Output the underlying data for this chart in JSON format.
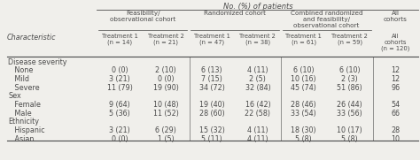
{
  "title": "No. (%) of patients",
  "col_groups": [
    {
      "label": "Feasibility/\nobservational cohort",
      "span": 2
    },
    {
      "label": "Randomized cohort",
      "span": 2
    },
    {
      "label": "Combined randomized\nand feasibility/\nobservational cohort",
      "span": 2
    },
    {
      "label": "All\ncohorts",
      "span": 1
    }
  ],
  "col_headers": [
    "Treatment 1\n(n = 14)",
    "Treatment 2\n(n = 21)",
    "Treatment 1\n(n = 47)",
    "Treatment 2\n(n = 38)",
    "Treatment 1\n(n = 61)",
    "Treatment 2\n(n = 59)",
    "All\ncohorts\n(n = 120)"
  ],
  "row_label_col": "Characteristic",
  "rows": [
    {
      "label": "Disease severity",
      "type": "section",
      "values": [
        "",
        "",
        "",
        "",
        "",
        "",
        ""
      ]
    },
    {
      "label": "   None",
      "type": "data",
      "values": [
        "0 (0)",
        "2 (10)",
        "6 (13)",
        "4 (11)",
        "6 (10)",
        "6 (10)",
        "12"
      ]
    },
    {
      "label": "   Mild",
      "type": "data",
      "values": [
        "3 (21)",
        "0 (0)",
        "7 (15)",
        "2 (5)",
        "10 (16)",
        "2 (3)",
        "12"
      ]
    },
    {
      "label": "   Severe",
      "type": "data",
      "values": [
        "11 (79)",
        "19 (90)",
        "34 (72)",
        "32 (84)",
        "45 (74)",
        "51 (86)",
        "96"
      ]
    },
    {
      "label": "Sex",
      "type": "section",
      "values": [
        "",
        "",
        "",
        "",
        "",
        "",
        ""
      ]
    },
    {
      "label": "   Female",
      "type": "data",
      "values": [
        "9 (64)",
        "10 (48)",
        "19 (40)",
        "16 (42)",
        "28 (46)",
        "26 (44)",
        "54"
      ]
    },
    {
      "label": "   Male",
      "type": "data",
      "values": [
        "5 (36)",
        "11 (52)",
        "28 (60)",
        "22 (58)",
        "33 (54)",
        "33 (56)",
        "66"
      ]
    },
    {
      "label": "Ethnicity",
      "type": "section",
      "values": [
        "",
        "",
        "",
        "",
        "",
        "",
        ""
      ]
    },
    {
      "label": "   Hispanic",
      "type": "data",
      "values": [
        "3 (21)",
        "6 (29)",
        "15 (32)",
        "4 (11)",
        "18 (30)",
        "10 (17)",
        "28"
      ]
    },
    {
      "label": "   Asian",
      "type": "data",
      "values": [
        "0 (0)",
        "1 (5)",
        "5 (11)",
        "4 (11)",
        "5 (8)",
        "5 (8)",
        "10"
      ]
    }
  ],
  "bg_color": "#f0efeb",
  "text_color": "#4a4a4a",
  "data_fontsize": 5.8,
  "section_fontsize": 5.8,
  "header_fontsize": 5.8,
  "title_fontsize": 6.0
}
